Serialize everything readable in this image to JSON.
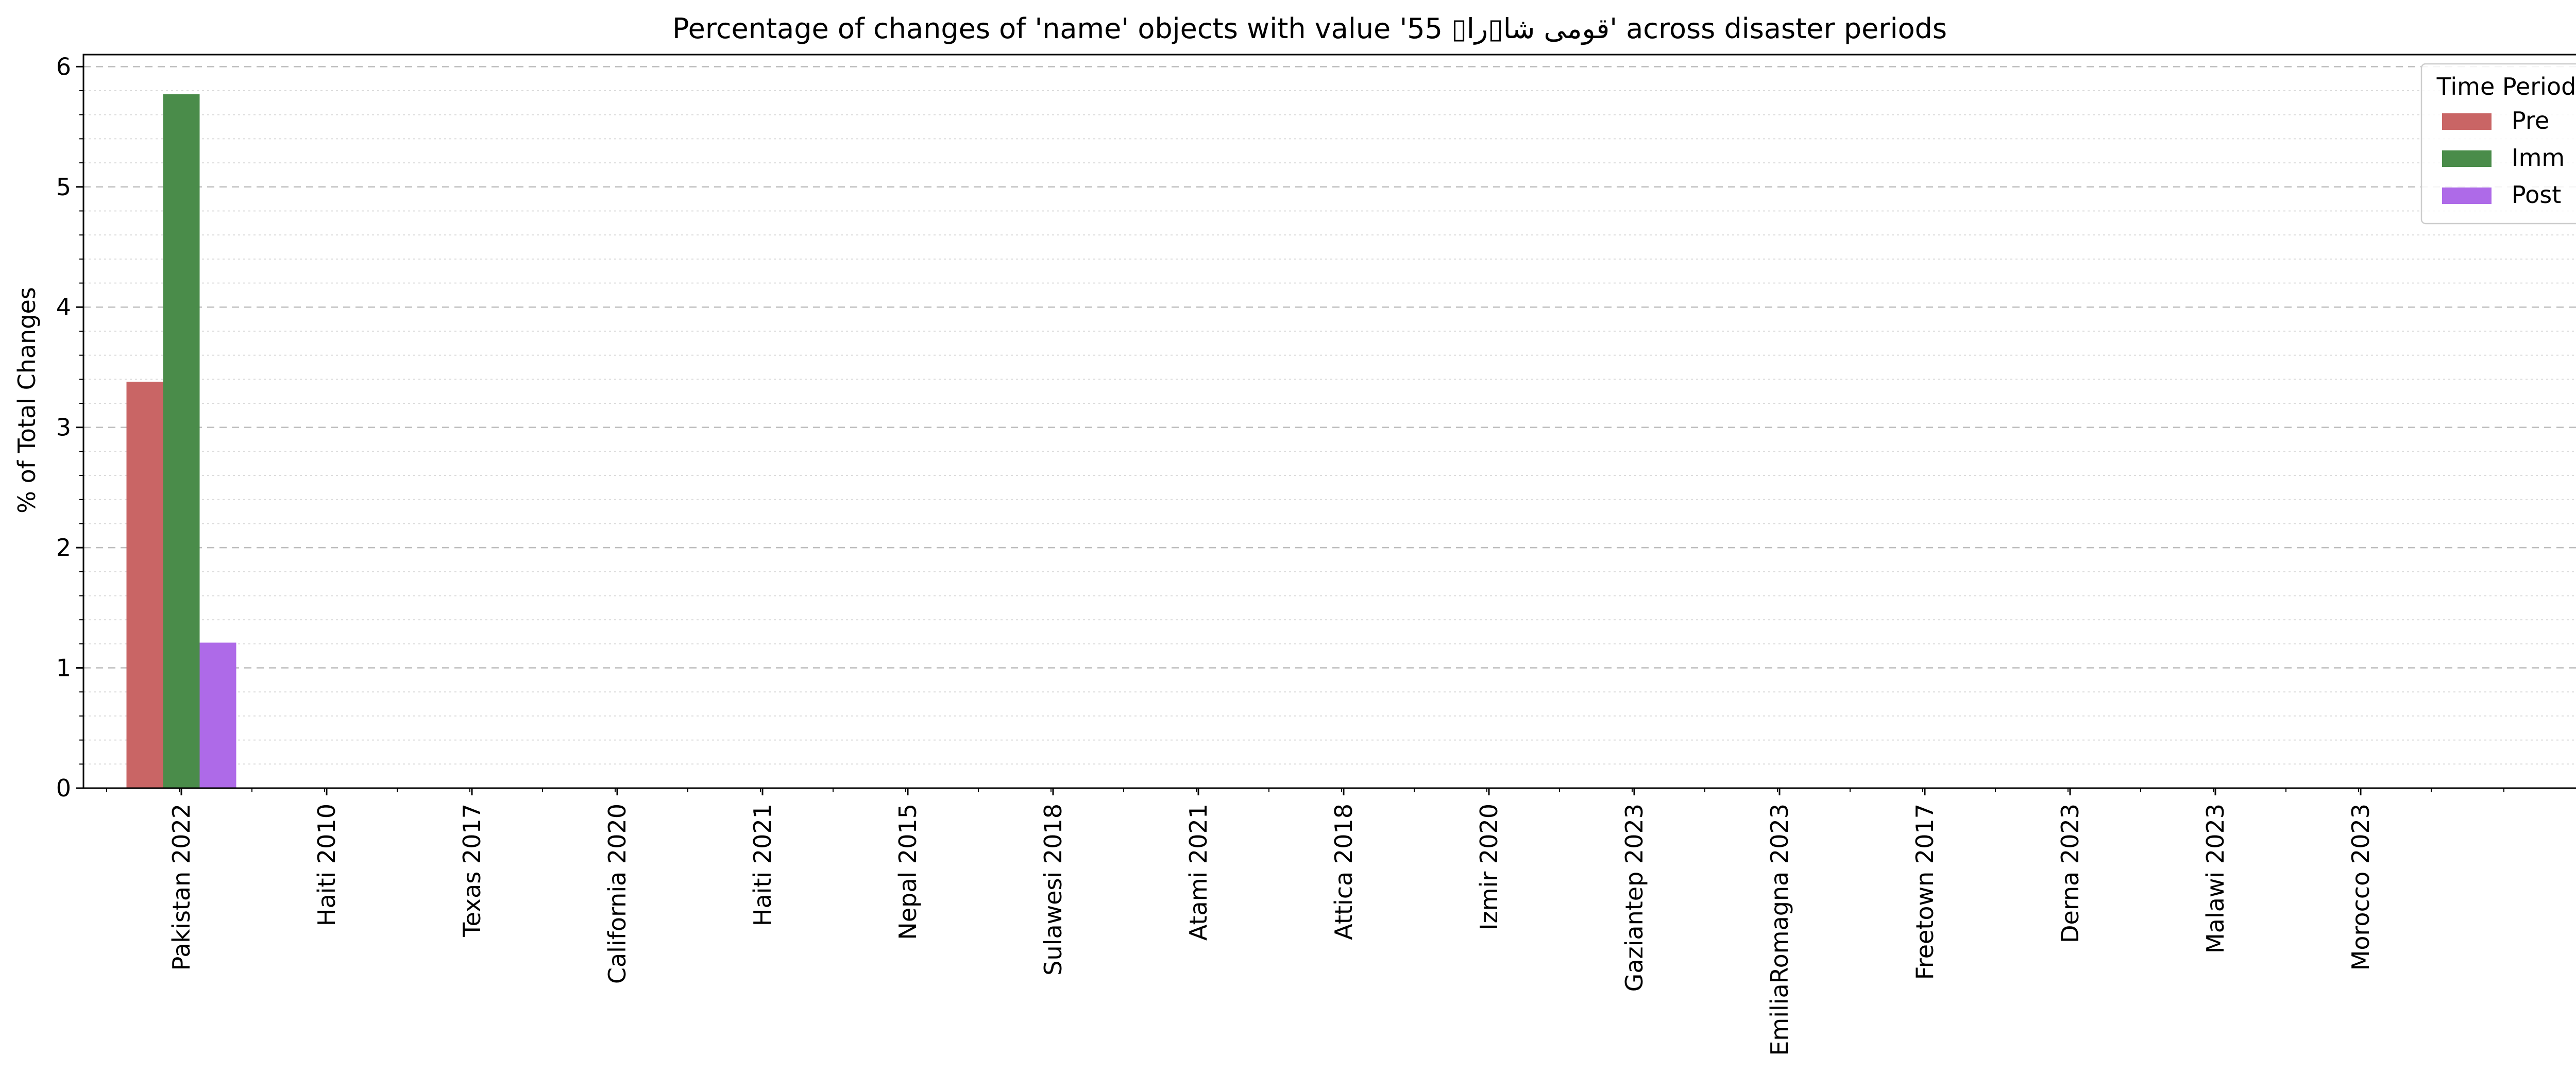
{
  "chart_data": {
    "type": "bar",
    "title": "Percentage of changes of 'name' objects with value 'قومی شا▯را▯ 55' across disaster periods",
    "xlabel": "",
    "ylabel": "% of Total Changes",
    "ylim": [
      0,
      6.1
    ],
    "yticks": [
      0,
      1,
      2,
      3,
      4,
      5,
      6
    ],
    "grid": true,
    "categories": [
      "Pakistan 2022",
      "Haiti 2010",
      "Texas 2017",
      "California 2020",
      "Haiti 2021",
      "Nepal 2015",
      "Sulawesi 2018",
      "Atami 2021",
      "Attica 2018",
      "Izmir 2020",
      "Gaziantep 2023",
      "EmiliaRomagna 2023",
      "Freetown 2017",
      "Derna 2023",
      "Malawi 2023",
      "Morocco 2023"
    ],
    "series": [
      {
        "name": "Pre",
        "color": "#c96565",
        "values": [
          3.38,
          0,
          0,
          0,
          0,
          0,
          0,
          0,
          0,
          0,
          0,
          0,
          0,
          0,
          0,
          0
        ]
      },
      {
        "name": "Imm",
        "color": "#4a8c4a",
        "values": [
          5.77,
          0,
          0,
          0,
          0,
          0,
          0,
          0,
          0,
          0,
          0,
          0,
          0,
          0,
          0,
          0
        ]
      },
      {
        "name": "Post",
        "color": "#ae6ae8",
        "values": [
          1.21,
          0,
          0,
          0,
          0,
          0,
          0,
          0,
          0,
          0,
          0,
          0,
          0,
          0,
          0,
          0
        ]
      }
    ],
    "legend": {
      "title": "Time Period",
      "placement": "top-right"
    }
  }
}
